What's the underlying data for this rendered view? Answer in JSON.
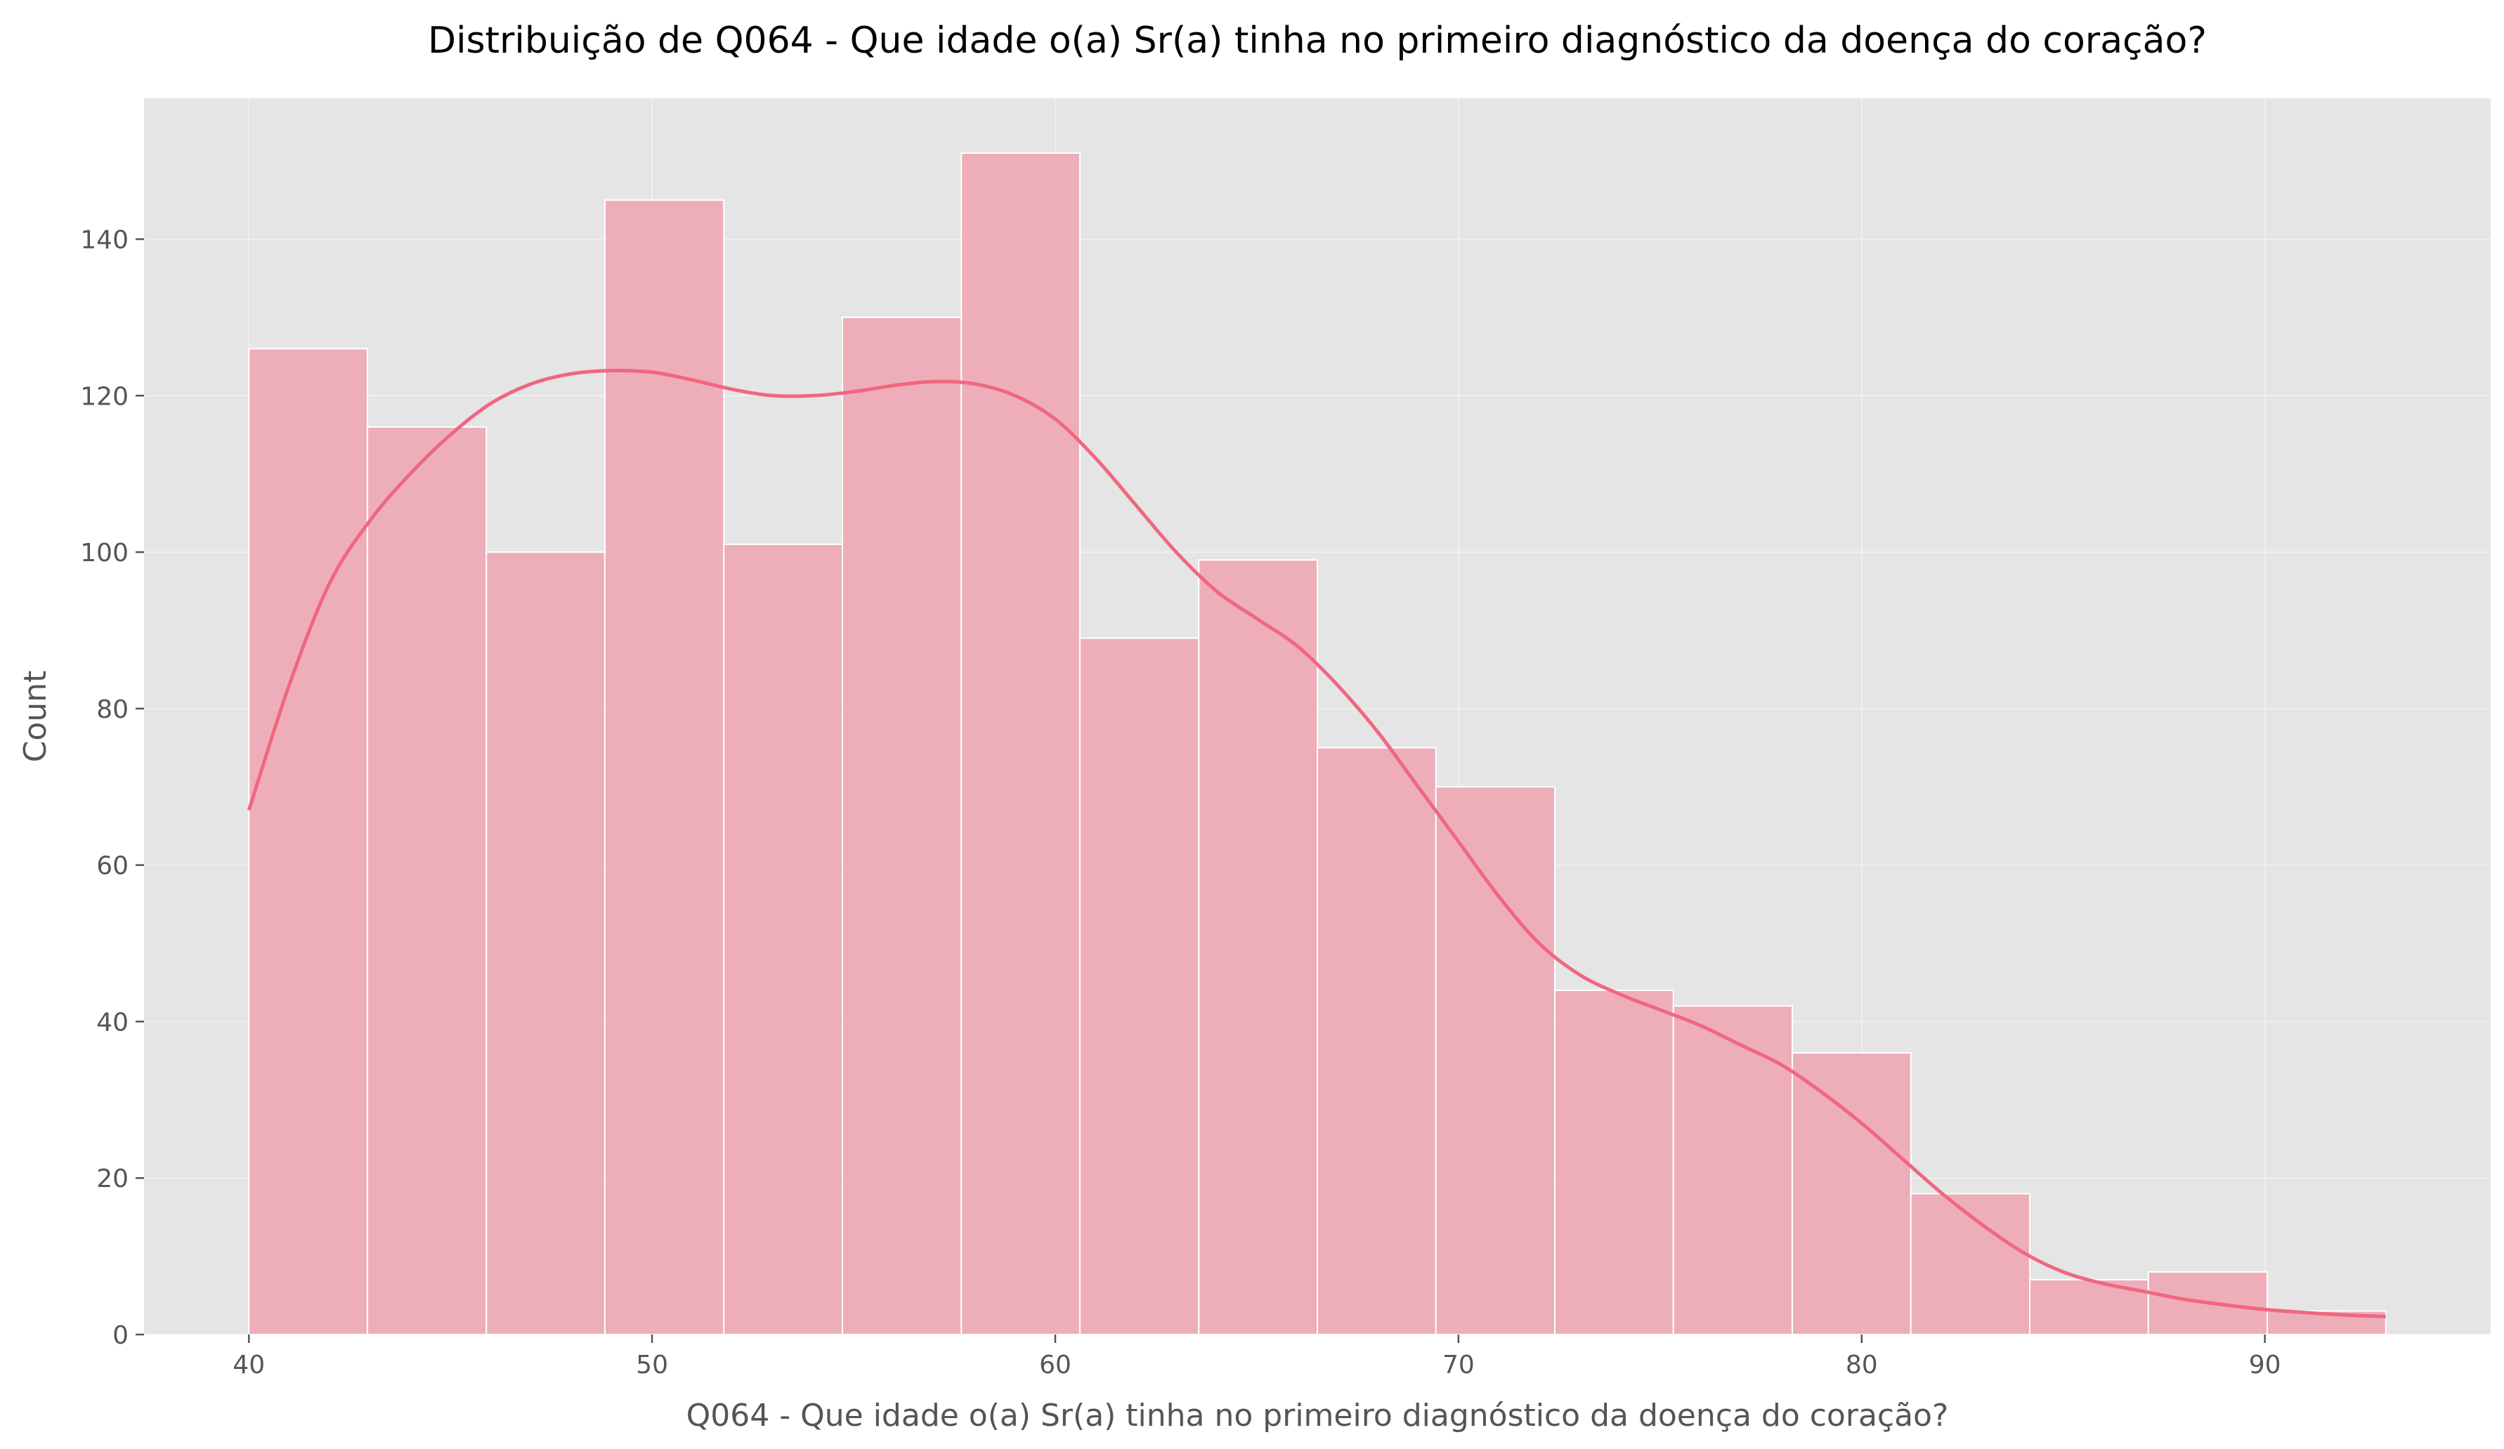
{
  "chart_data": {
    "type": "bar",
    "subtype": "histogram-with-kde",
    "title": "Distribuição de Q064 - Que idade o(a) Sr(a) tinha no primeiro diagnóstico da doença do coração?",
    "xlabel": "Q064 - Que idade o(a) Sr(a) tinha no primeiro diagnóstico da doença do coração?",
    "ylabel": "Count",
    "xlim": [
      37.4,
      95.6
    ],
    "ylim": [
      0,
      158
    ],
    "xticks": [
      40,
      50,
      60,
      70,
      80,
      90
    ],
    "yticks": [
      0,
      20,
      40,
      60,
      80,
      100,
      120,
      140
    ],
    "grid": true,
    "legend": "none",
    "bin_edges": [
      40,
      42.94,
      45.89,
      48.83,
      51.78,
      54.72,
      57.67,
      60.61,
      63.56,
      66.5,
      69.44,
      72.39,
      75.33,
      78.28,
      81.22,
      84.17,
      87.11,
      90.06,
      93
    ],
    "values": [
      126,
      116,
      100,
      145,
      101,
      130,
      151,
      89,
      99,
      75,
      70,
      44,
      42,
      36,
      18,
      7,
      8,
      3
    ],
    "kde": {
      "x": [
        40,
        41,
        42,
        43,
        44,
        45,
        46,
        47,
        48,
        49,
        50,
        51,
        52,
        53,
        54,
        55,
        56,
        57,
        58,
        59,
        60,
        61,
        62,
        63,
        64,
        65,
        66,
        67,
        68,
        69,
        70,
        71,
        72,
        73,
        74,
        75,
        76,
        77,
        78,
        79,
        80,
        81,
        82,
        83,
        84,
        85,
        86,
        87,
        88,
        89,
        90,
        91,
        92,
        93
      ],
      "y": [
        67,
        83,
        96,
        104,
        110,
        115,
        119,
        121.5,
        122.8,
        123.2,
        123,
        122,
        120.8,
        120,
        120,
        120.5,
        121.3,
        121.8,
        121.5,
        120,
        117,
        112,
        106,
        100,
        95,
        91.5,
        88,
        83,
        77,
        70,
        63,
        56,
        50,
        46,
        43.5,
        41.5,
        39.5,
        37,
        34.5,
        31,
        27,
        22.5,
        18,
        14,
        10.5,
        8,
        6.5,
        5.5,
        4.5,
        3.8,
        3.2,
        2.8,
        2.5,
        2.3
      ]
    },
    "colors": {
      "bar": "#eea6b4",
      "kde_line": "#f0677f",
      "plot_background": "#e5e5e5",
      "text": "#555555"
    }
  }
}
